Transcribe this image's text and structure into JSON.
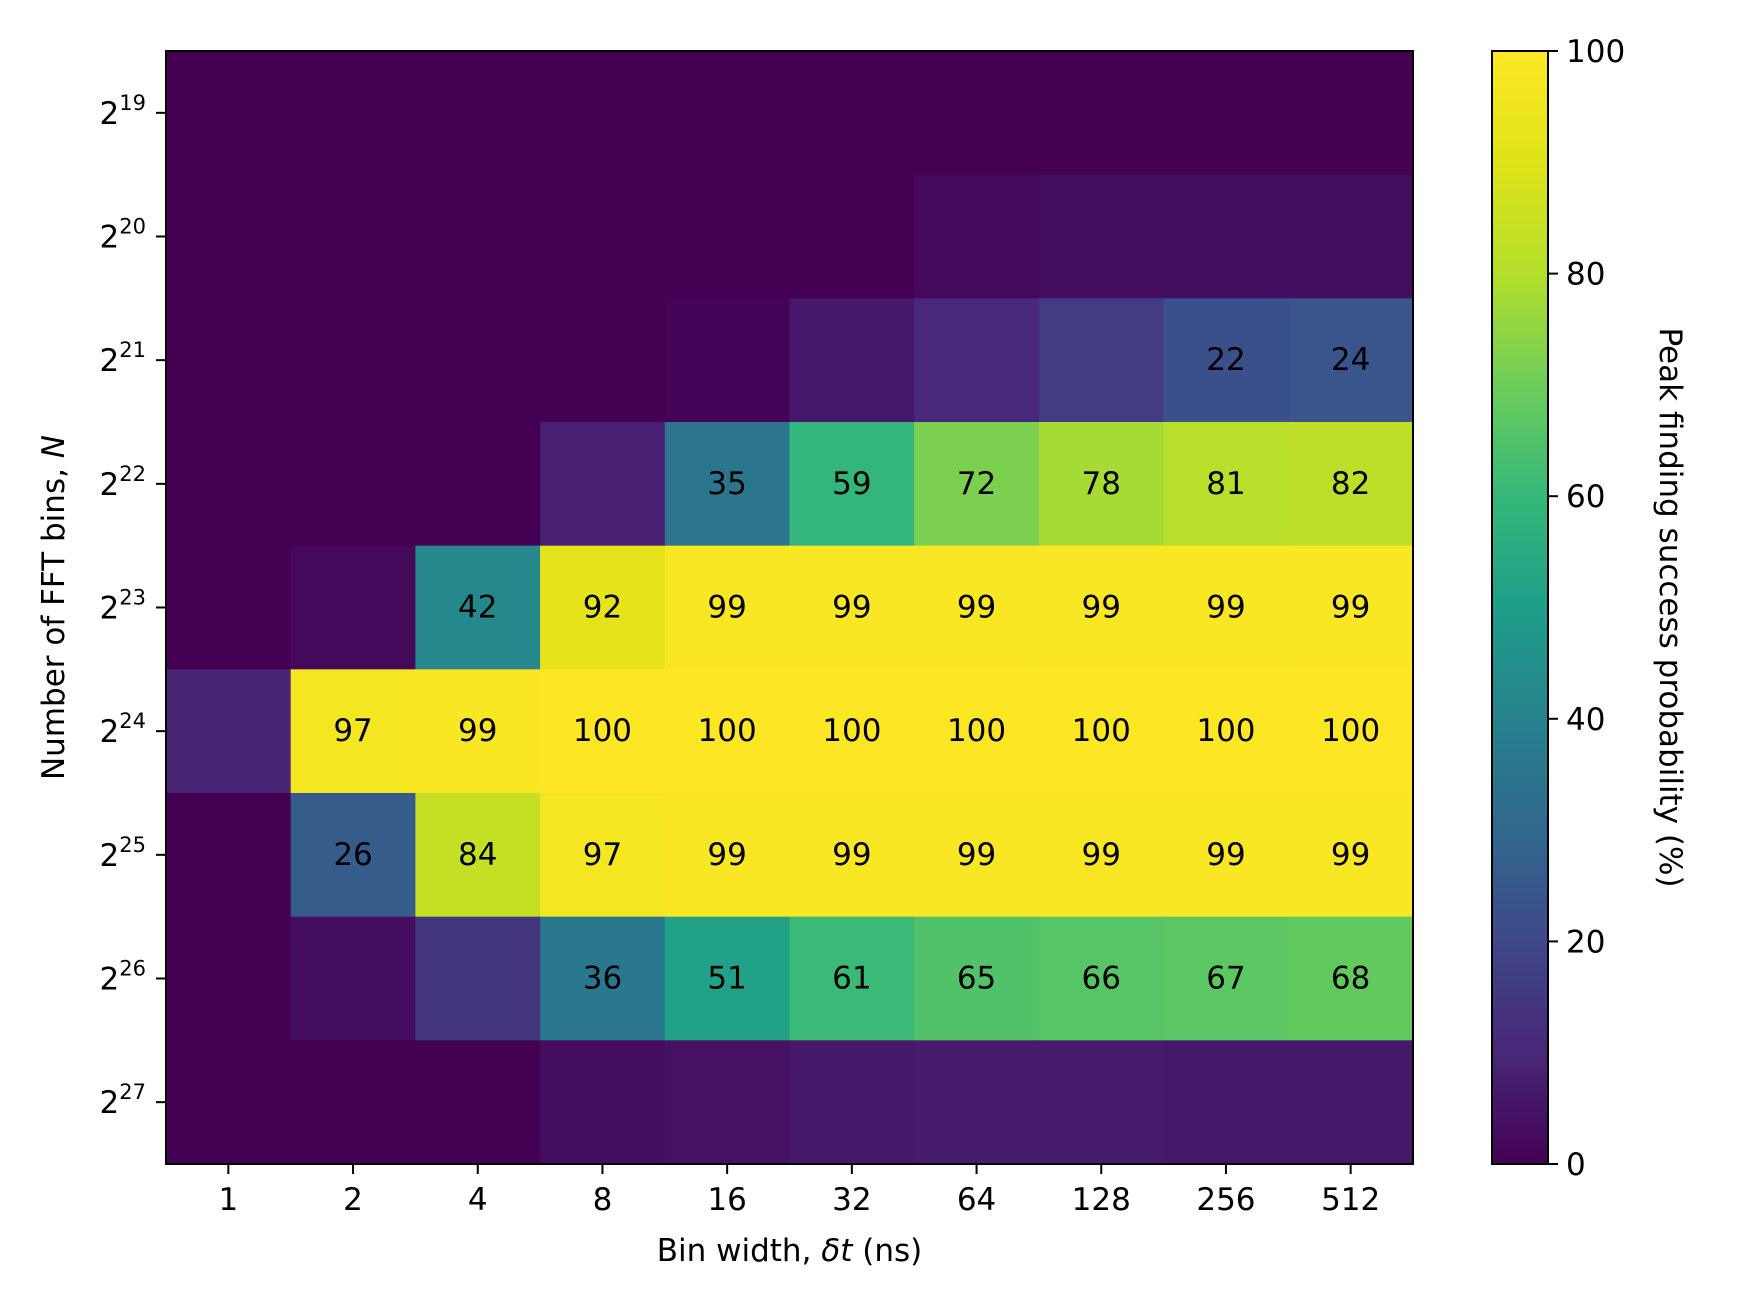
{
  "chart_data": {
    "type": "heatmap",
    "xlabel": {
      "pre": "Bin width, ",
      "sym": "δt",
      "post": " (ns)"
    },
    "ylabel": {
      "pre": "Number of FFT bins, ",
      "sym": "N"
    },
    "colorbar_label": "Peak finding success probability (%)",
    "colormap": "viridis",
    "x_categories": [
      "1",
      "2",
      "4",
      "8",
      "16",
      "32",
      "64",
      "128",
      "256",
      "512"
    ],
    "y_categories": [
      {
        "base": "2",
        "exp": "19"
      },
      {
        "base": "2",
        "exp": "20"
      },
      {
        "base": "2",
        "exp": "21"
      },
      {
        "base": "2",
        "exp": "22"
      },
      {
        "base": "2",
        "exp": "23"
      },
      {
        "base": "2",
        "exp": "24"
      },
      {
        "base": "2",
        "exp": "25"
      },
      {
        "base": "2",
        "exp": "26"
      },
      {
        "base": "2",
        "exp": "27"
      }
    ],
    "values": [
      [
        0,
        0,
        0,
        0,
        0,
        0,
        0,
        0,
        0,
        0
      ],
      [
        0,
        0,
        0,
        0,
        0,
        0,
        2,
        3,
        3,
        3
      ],
      [
        0,
        0,
        0,
        0,
        1,
        6,
        10,
        16,
        22,
        24
      ],
      [
        0,
        0,
        0,
        8,
        35,
        59,
        72,
        78,
        81,
        82
      ],
      [
        0,
        2,
        42,
        92,
        99,
        99,
        99,
        99,
        99,
        99
      ],
      [
        9,
        97,
        99,
        100,
        100,
        100,
        100,
        100,
        100,
        100
      ],
      [
        0,
        26,
        84,
        97,
        99,
        99,
        99,
        99,
        99,
        99
      ],
      [
        0,
        3,
        14,
        36,
        51,
        61,
        65,
        66,
        67,
        68
      ],
      [
        0,
        0,
        0,
        3,
        4,
        6,
        7,
        7,
        6,
        6
      ]
    ],
    "cell_labels": [
      [
        "",
        "",
        "",
        "",
        "",
        "",
        "",
        "",
        "",
        ""
      ],
      [
        "",
        "",
        "",
        "",
        "",
        "",
        "",
        "",
        "",
        ""
      ],
      [
        "",
        "",
        "",
        "",
        "",
        "",
        "",
        "",
        "22",
        "24"
      ],
      [
        "",
        "",
        "",
        "",
        "35",
        "59",
        "72",
        "78",
        "81",
        "82"
      ],
      [
        "",
        "",
        "42",
        "92",
        "99",
        "99",
        "99",
        "99",
        "99",
        "99"
      ],
      [
        "",
        "97",
        "99",
        "100",
        "100",
        "100",
        "100",
        "100",
        "100",
        "100"
      ],
      [
        "",
        "26",
        "84",
        "97",
        "99",
        "99",
        "99",
        "99",
        "99",
        "99"
      ],
      [
        "",
        "",
        "",
        "36",
        "51",
        "61",
        "65",
        "66",
        "67",
        "68"
      ],
      [
        "",
        "",
        "",
        "",
        "",
        "",
        "",
        "",
        "",
        ""
      ]
    ],
    "colorbar_range": [
      0,
      100
    ],
    "colorbar_ticks": [
      "0",
      "20",
      "40",
      "60",
      "80",
      "100"
    ]
  }
}
